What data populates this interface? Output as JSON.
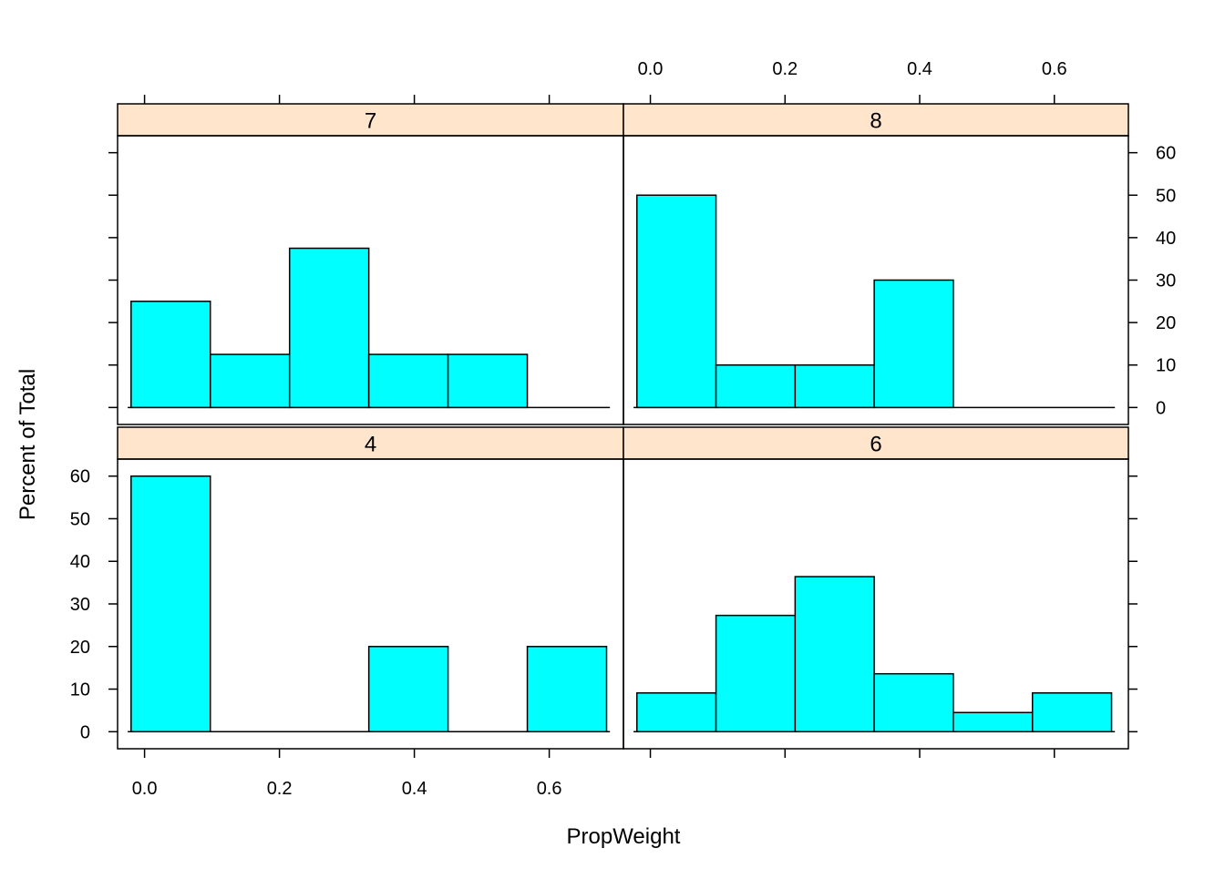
{
  "chart_data": {
    "type": "bar",
    "chart_kind": "lattice-histogram",
    "xlabel": "PropWeight",
    "ylabel": "Percent of Total",
    "xlim": [
      -0.04,
      0.71
    ],
    "ylim": [
      -4,
      64
    ],
    "x_ticks": [
      0.0,
      0.2,
      0.4,
      0.6
    ],
    "x_tick_labels": [
      "0.0",
      "0.2",
      "0.4",
      "0.6"
    ],
    "y_ticks": [
      0,
      10,
      20,
      30,
      40,
      50,
      60
    ],
    "y_tick_labels": [
      "0",
      "10",
      "20",
      "30",
      "40",
      "50",
      "60"
    ],
    "bin_edges": [
      -0.02,
      0.0975,
      0.215,
      0.3325,
      0.45,
      0.5675,
      0.685
    ],
    "bar_color": "#00FFFF",
    "strip_color": "#FFE5CC",
    "panels": [
      {
        "label": "7",
        "position": "top-left",
        "values": [
          25,
          12.5,
          37.5,
          12.5,
          12.5,
          0
        ]
      },
      {
        "label": "8",
        "position": "top-right",
        "values": [
          50,
          10,
          10,
          30,
          0,
          0
        ]
      },
      {
        "label": "4",
        "position": "bottom-left",
        "values": [
          60,
          0,
          0,
          20,
          0,
          20
        ]
      },
      {
        "label": "6",
        "position": "bottom-right",
        "values": [
          9.1,
          27.3,
          36.4,
          13.6,
          4.5,
          9.1
        ]
      }
    ]
  }
}
